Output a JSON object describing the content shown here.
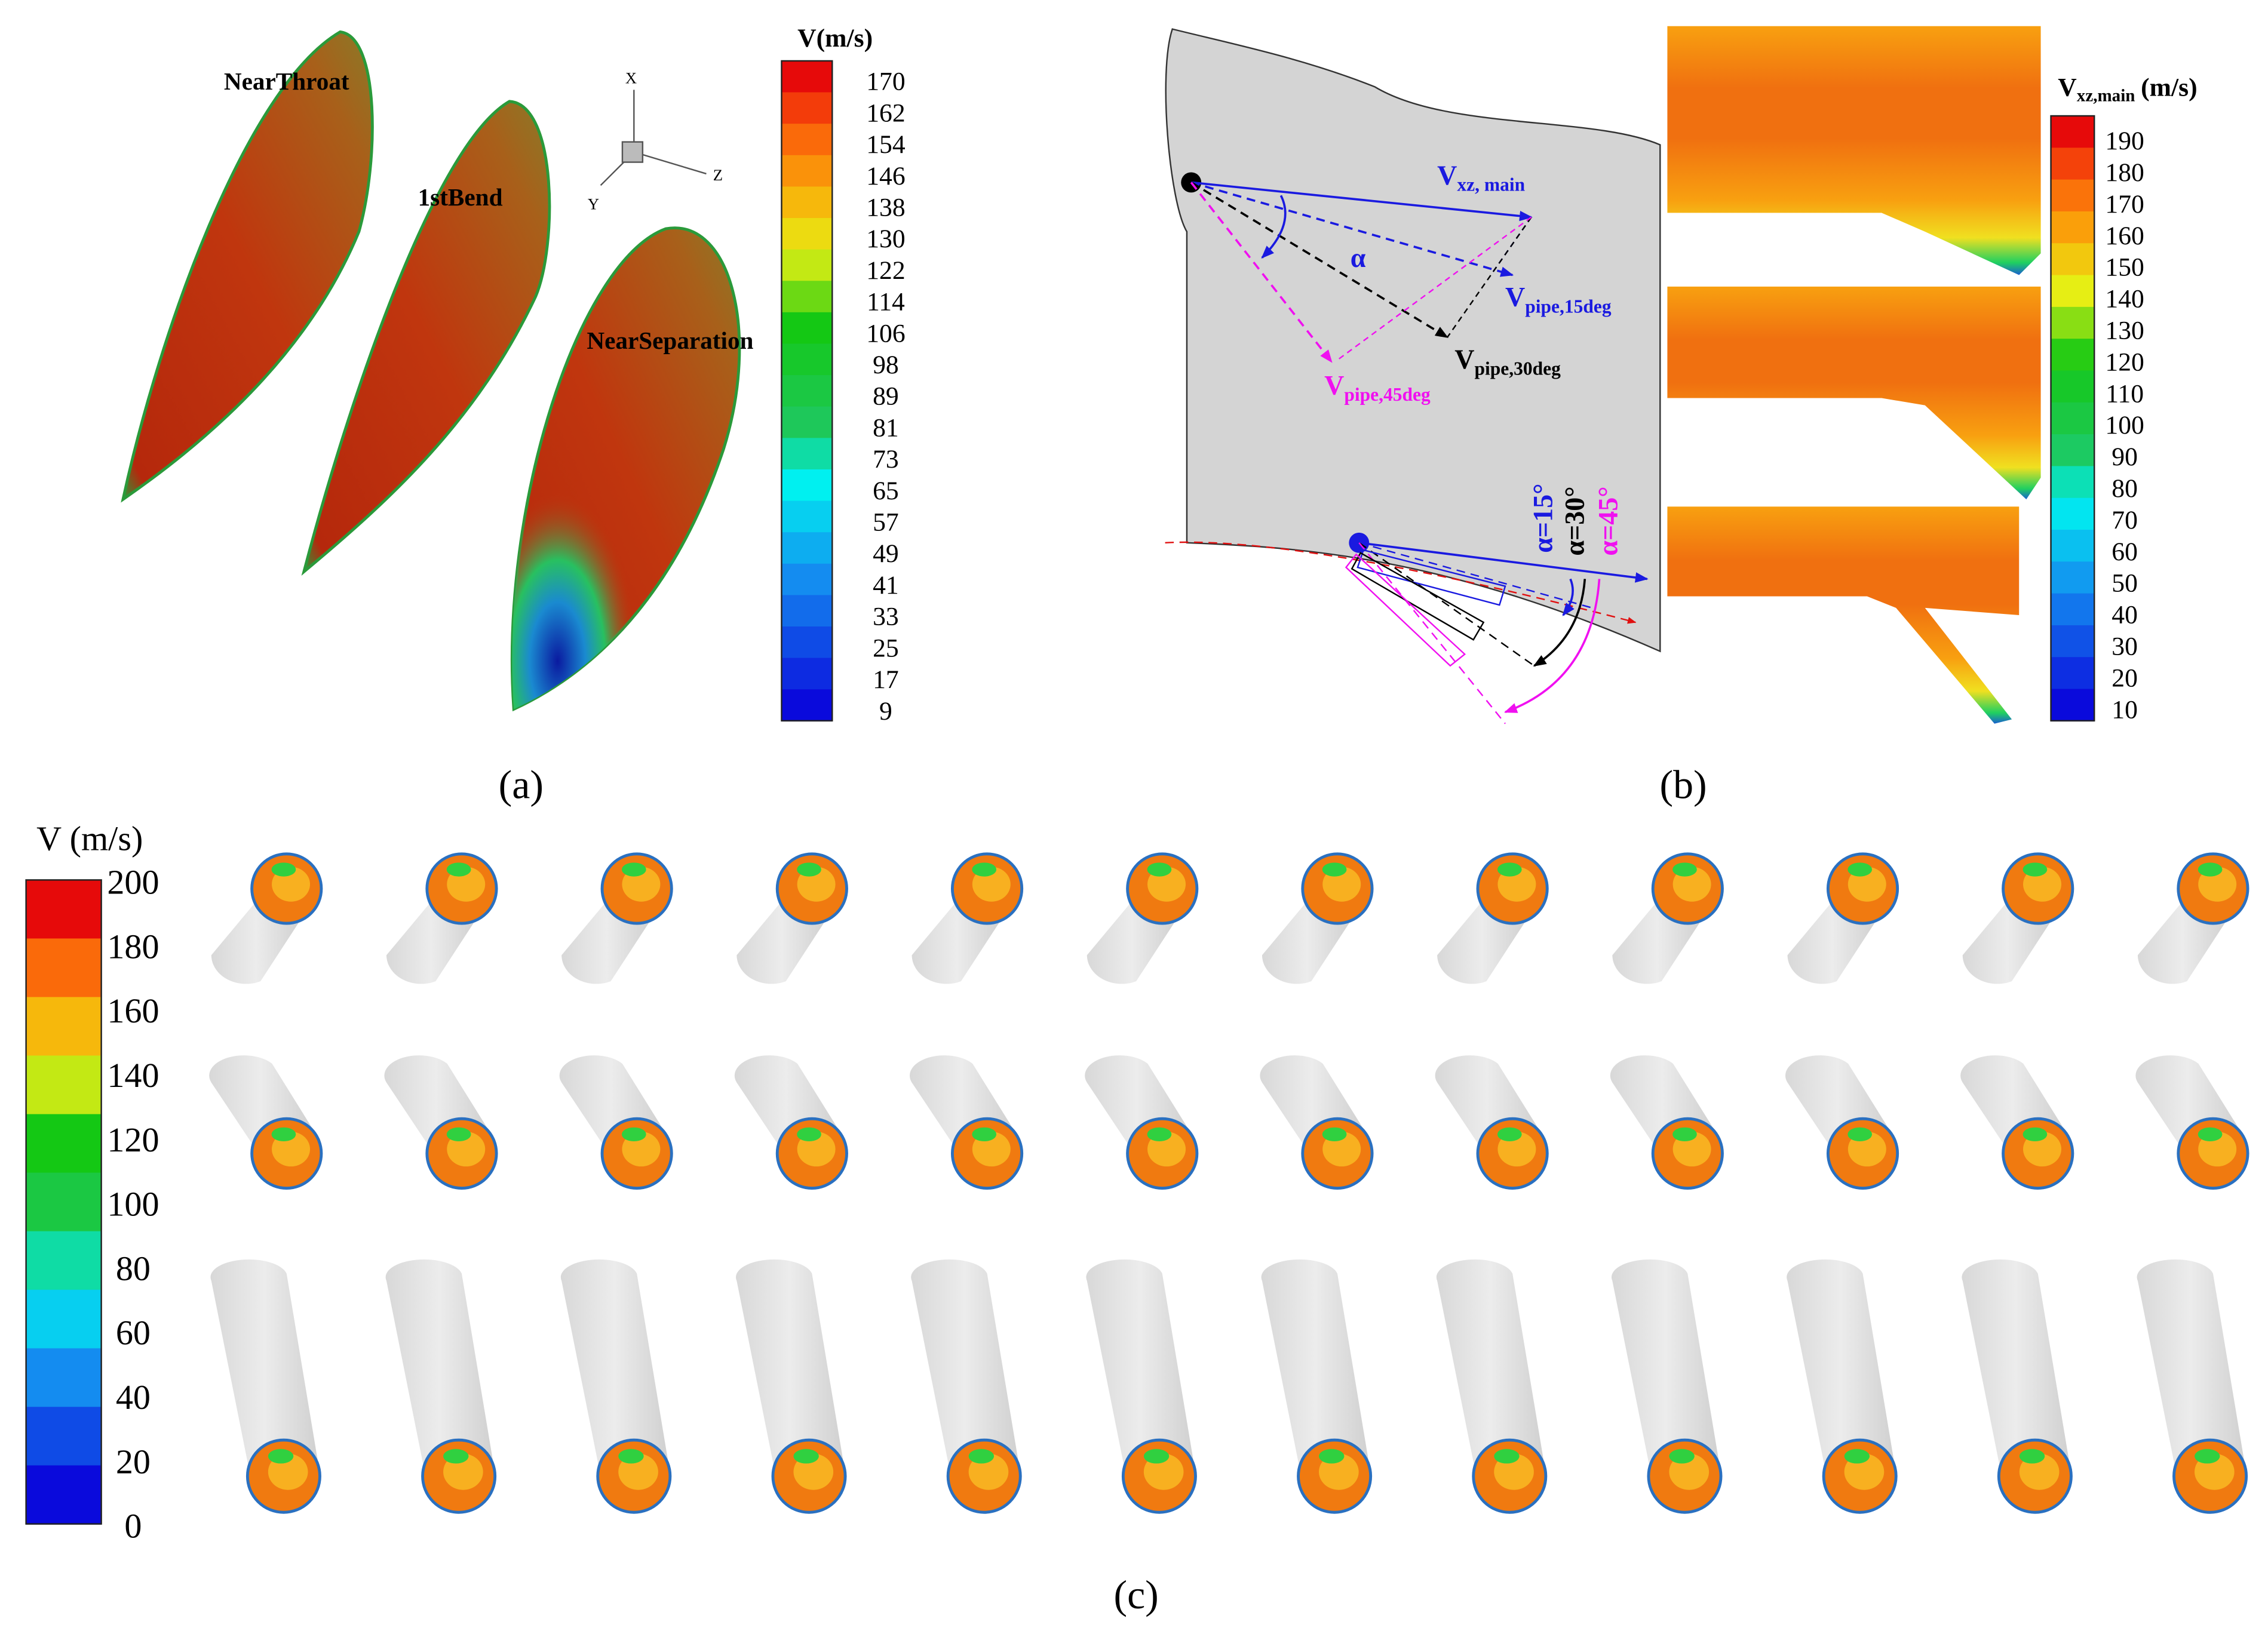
{
  "panel_a": {
    "labels": [
      "NearThroat",
      "1stBend",
      "NearSeparation"
    ],
    "axes": [
      "X",
      "Y",
      "Z"
    ],
    "colorbar": {
      "title": "V(m/s)",
      "ticks": [
        170,
        162,
        154,
        146,
        138,
        130,
        122,
        114,
        106,
        98,
        89,
        81,
        73,
        65,
        57,
        49,
        41,
        33,
        25,
        17,
        9
      ]
    },
    "caption": "(a)"
  },
  "panel_b": {
    "vectors": [
      {
        "main": "V",
        "sub": "xz, main"
      },
      {
        "main": "V",
        "sub": "pipe,15deg"
      },
      {
        "main": "V",
        "sub": "pipe,30deg"
      },
      {
        "main": "V",
        "sub": "pipe,45deg"
      }
    ],
    "angle": "α",
    "angles": [
      "α=15°",
      "α=30°",
      "α=45°"
    ],
    "colorbar": {
      "title": {
        "main": "V",
        "sub": "xz,main",
        "unit": "(m/s)"
      },
      "ticks": [
        190,
        180,
        170,
        160,
        150,
        140,
        130,
        120,
        110,
        100,
        90,
        80,
        70,
        60,
        50,
        40,
        30,
        20,
        10
      ]
    },
    "caption": "(b)"
  },
  "panel_c": {
    "colorbar": {
      "title": "V (m/s)",
      "ticks": [
        200,
        180,
        160,
        140,
        120,
        100,
        80,
        60,
        40,
        20,
        0
      ]
    },
    "caption": "(c)"
  }
}
